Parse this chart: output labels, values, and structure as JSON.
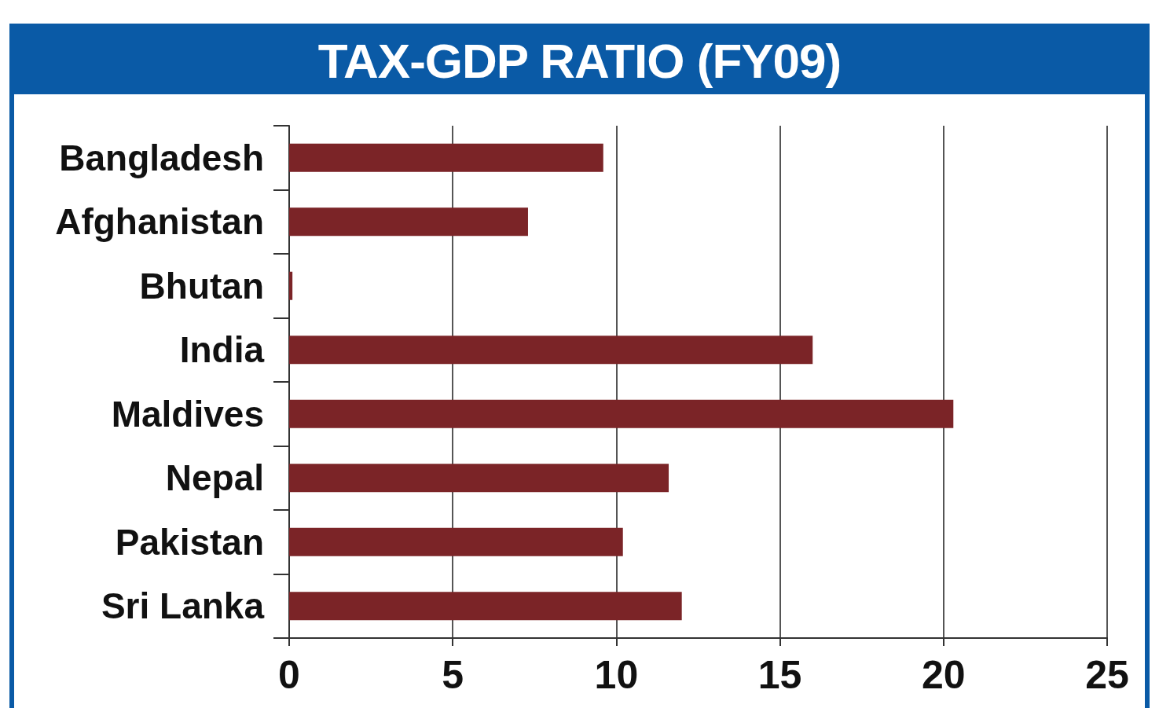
{
  "chart_data": {
    "type": "bar",
    "orientation": "horizontal",
    "title": "TAX-GDP RATIO (FY09)",
    "categories": [
      "Bangladesh",
      "Afghanistan",
      "Bhutan",
      "India",
      "Maldives",
      "Nepal",
      "Pakistan",
      "Sri Lanka"
    ],
    "values": [
      9.6,
      7.3,
      0.1,
      16.0,
      20.3,
      11.6,
      10.2,
      12.0
    ],
    "color": "#7b2427",
    "xlim": [
      0,
      25
    ],
    "xticks": [
      0,
      5,
      10,
      15,
      20,
      25
    ],
    "grid": "x"
  }
}
